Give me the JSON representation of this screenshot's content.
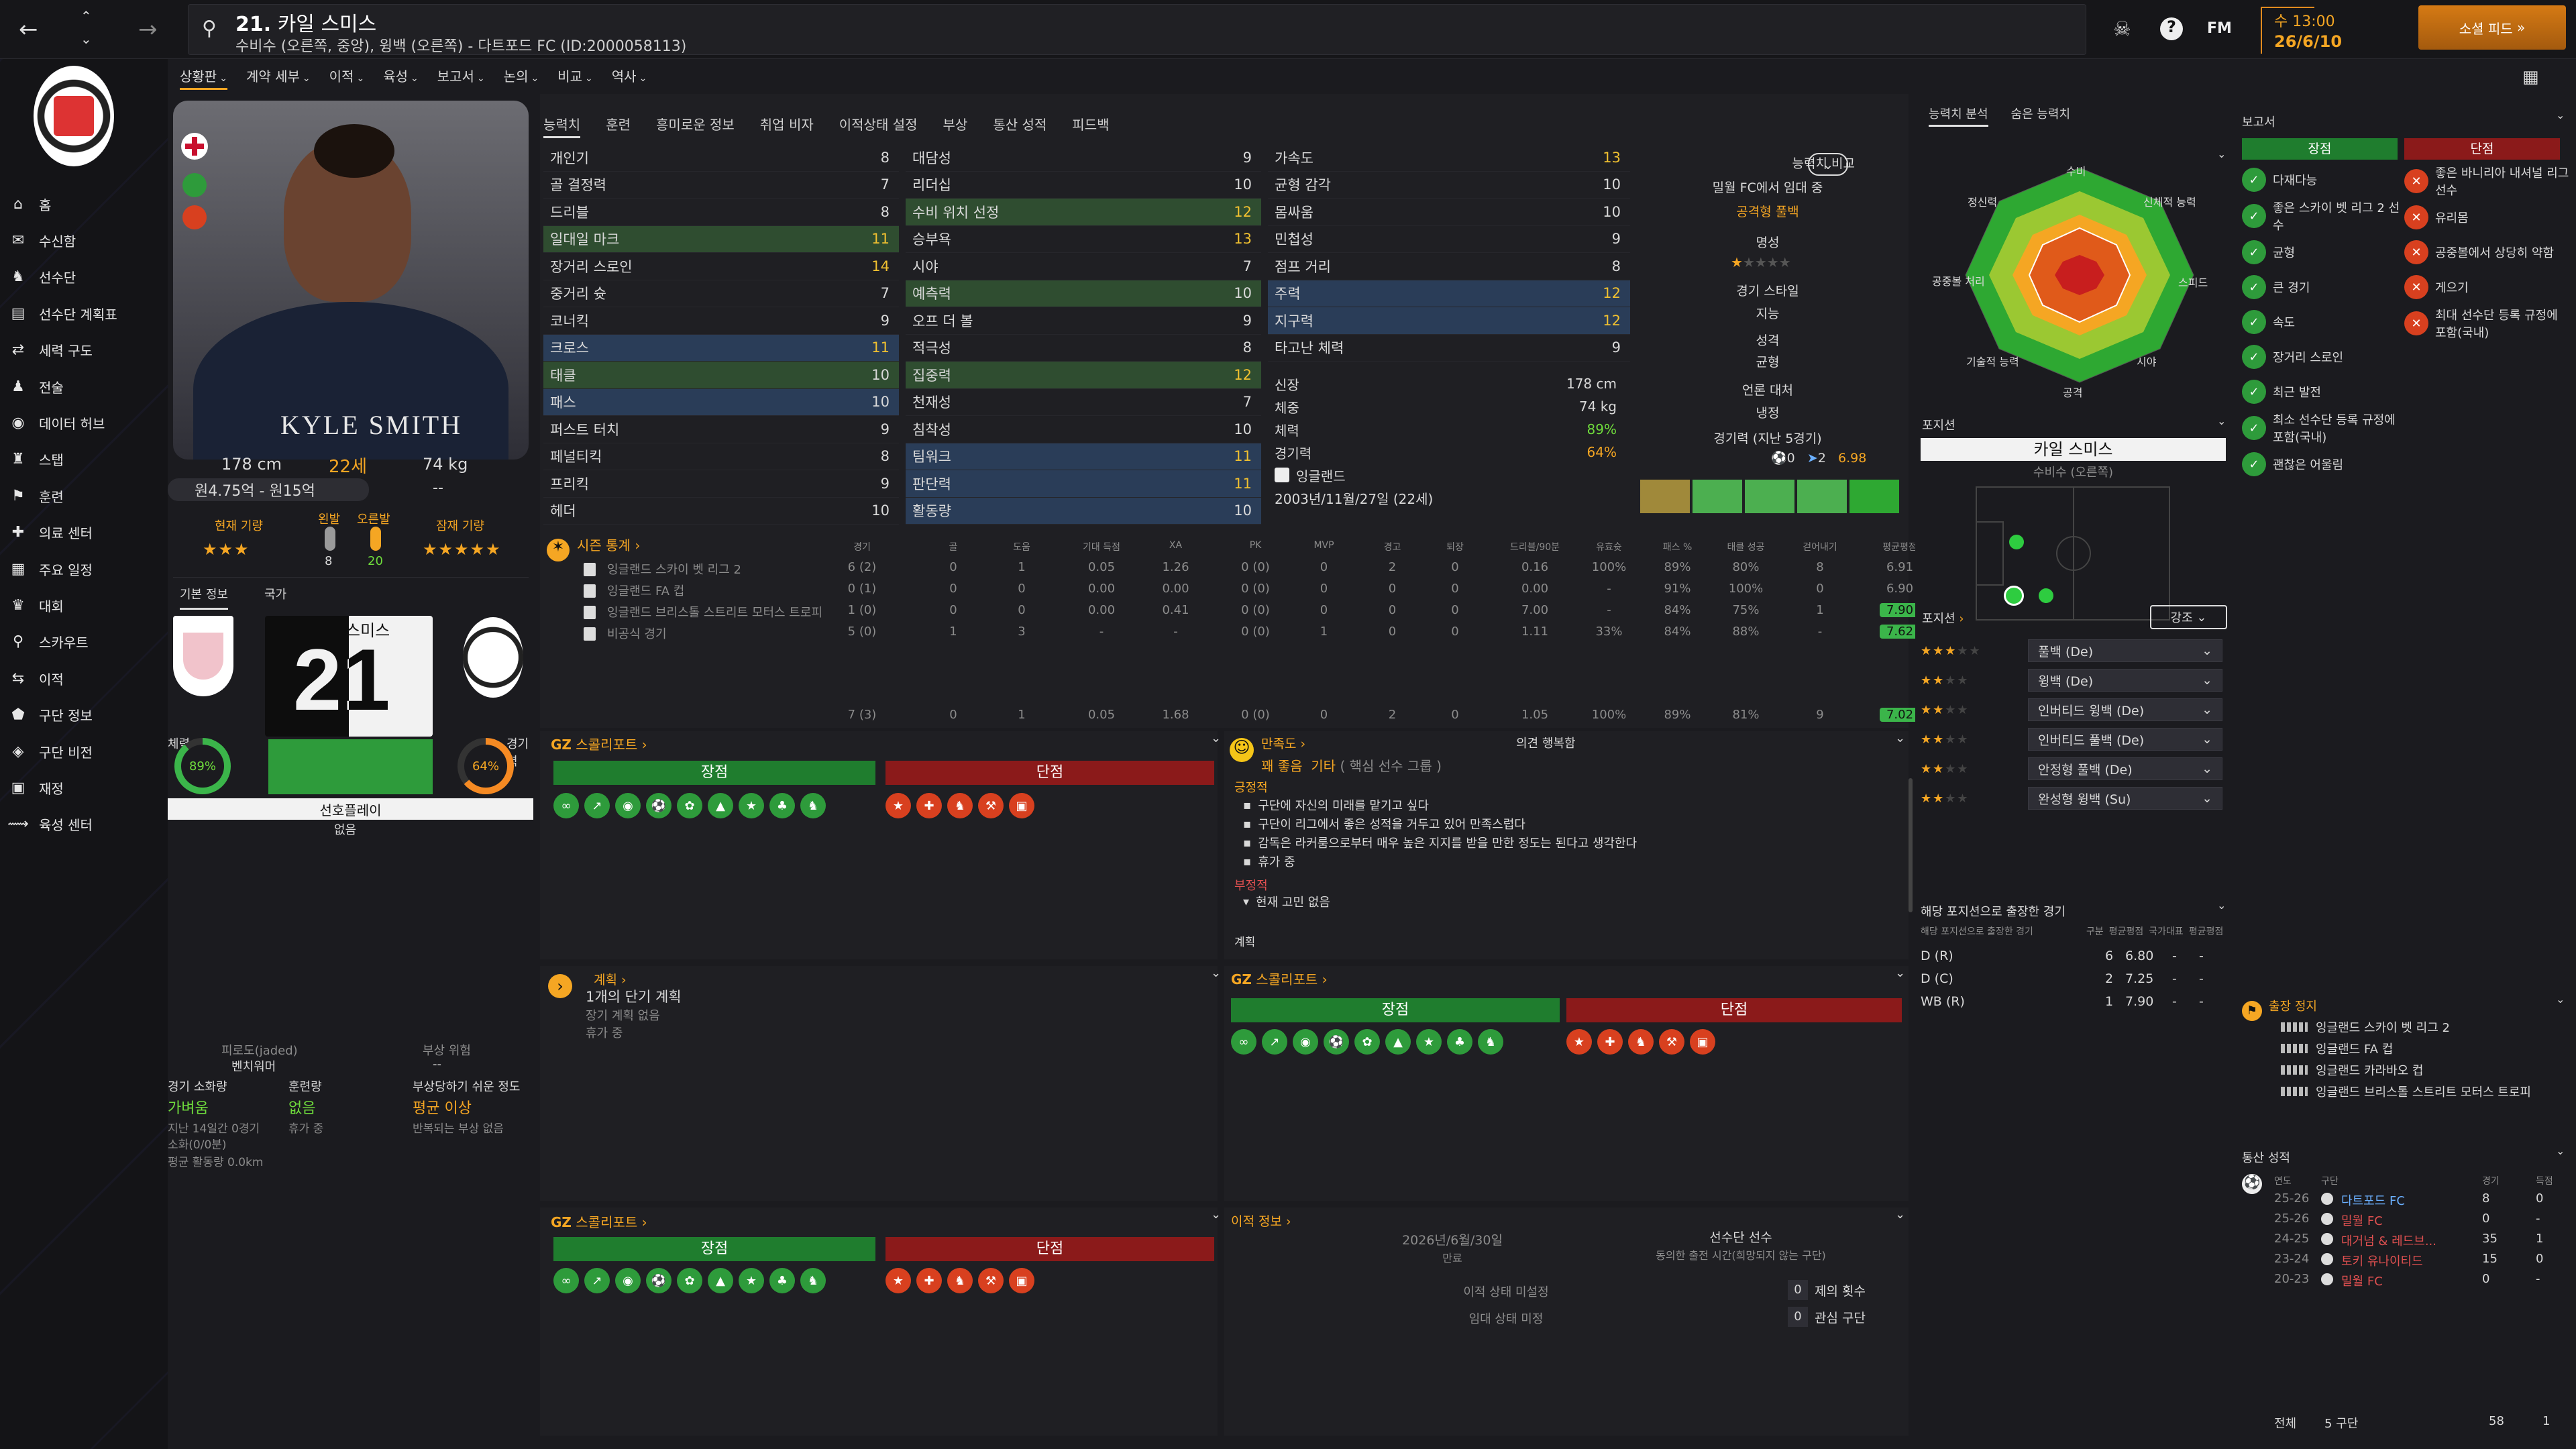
{
  "topbar": {
    "title_number": "21.",
    "title_name": "카일 스미스",
    "subtitle": "수비수 (오른쪽, 중앙), 윙백 (오른쪽) - 다트포드 FC (ID:2000058113)",
    "fm_label": "FM",
    "date_day": "수 13:00",
    "date": "26/6/10",
    "continue_label": "소셜 피드"
  },
  "nav_menu": [
    "상황판",
    "계약 세부",
    "이적",
    "육성",
    "보고서",
    "논의",
    "비교",
    "역사"
  ],
  "sidebar": {
    "items": [
      "홈",
      "수신함",
      "선수단",
      "선수단 계획표",
      "세력 구도",
      "전술",
      "데이터 허브",
      "스탭",
      "훈련",
      "의료 센터",
      "주요 일정",
      "대회",
      "스카우트",
      "이적",
      "구단 정보",
      "구단 비전",
      "재정",
      "육성 센터"
    ]
  },
  "player_card": {
    "name_on_photo": "KYLE SMITH",
    "height": "178 cm",
    "age": "22세",
    "weight": "74 kg",
    "wage": "원4.75억 - 원15억",
    "wage_dash": "--",
    "current_ability_label": "현재 기량",
    "current_ability_stars": "★★★",
    "left_foot_label": "왼발",
    "right_foot_label": "오른발",
    "left_foot_value": "8",
    "right_foot_value": "20",
    "potential_label": "잠재 기량",
    "potential_stars": "★★★★★",
    "tab_basic": "기본 정보",
    "tab_nation": "국가",
    "shirt_name": "스미스",
    "shirt_number": "21",
    "fitness_label": "체력",
    "fitness_value": "89%",
    "match_label": "경기력",
    "match_value": "64%",
    "playing_time": "선호플레이",
    "playing_time_sub": "없음",
    "fatigue_title": "피로도(jaded)",
    "fatigue_value": "벤치워머",
    "injury_title": "부상 위험",
    "injury_dash": "--",
    "load_label": "경기 소화량",
    "load_value": "가벼움",
    "training_label": "훈련량",
    "training_value": "없음",
    "injury_prone_label": "부상당하기 쉬운 정도",
    "injury_prone_value": "평균 이상",
    "load_sub1": "지난 14일간 0경기",
    "load_sub2": "소화(0/0분)",
    "load_sub3": "평균 활동량 0.0km",
    "training_sub": "휴가 중",
    "injury_sub": "반복되는 부상 없음"
  },
  "attr_tabs": [
    "능력치",
    "훈련",
    "흥미로운 정보",
    "취업 비자",
    "이적상태 설정",
    "부상",
    "통산 성적",
    "피드백"
  ],
  "technical": [
    {
      "name": "개인기",
      "value": "8",
      "hl": ""
    },
    {
      "name": "골 결정력",
      "value": "7",
      "hl": ""
    },
    {
      "name": "드리블",
      "value": "8",
      "hl": ""
    },
    {
      "name": "일대일 마크",
      "value": "11",
      "hl": "g"
    },
    {
      "name": "장거리 스로인",
      "value": "14",
      "hl": ""
    },
    {
      "name": "중거리 슛",
      "value": "7",
      "hl": ""
    },
    {
      "name": "코너킥",
      "value": "9",
      "hl": ""
    },
    {
      "name": "크로스",
      "value": "11",
      "hl": "b"
    },
    {
      "name": "태클",
      "value": "10",
      "hl": "g"
    },
    {
      "name": "패스",
      "value": "10",
      "hl": "b"
    },
    {
      "name": "퍼스트 터치",
      "value": "9",
      "hl": ""
    },
    {
      "name": "페널티킥",
      "value": "8",
      "hl": ""
    },
    {
      "name": "프리킥",
      "value": "9",
      "hl": ""
    },
    {
      "name": "헤더",
      "value": "10",
      "hl": ""
    }
  ],
  "mental": [
    {
      "name": "대담성",
      "value": "9",
      "hl": ""
    },
    {
      "name": "리더십",
      "value": "10",
      "hl": ""
    },
    {
      "name": "수비 위치 선정",
      "value": "12",
      "hl": "g"
    },
    {
      "name": "승부욕",
      "value": "13",
      "hl": ""
    },
    {
      "name": "시야",
      "value": "7",
      "hl": ""
    },
    {
      "name": "예측력",
      "value": "10",
      "hl": "g"
    },
    {
      "name": "오프 더 볼",
      "value": "9",
      "hl": ""
    },
    {
      "name": "적극성",
      "value": "8",
      "hl": ""
    },
    {
      "name": "집중력",
      "value": "12",
      "hl": "g"
    },
    {
      "name": "천재성",
      "value": "7",
      "hl": ""
    },
    {
      "name": "침착성",
      "value": "10",
      "hl": ""
    },
    {
      "name": "팀워크",
      "value": "11",
      "hl": "b"
    },
    {
      "name": "판단력",
      "value": "11",
      "hl": "b"
    },
    {
      "name": "활동량",
      "value": "10",
      "hl": "b"
    }
  ],
  "physical": [
    {
      "name": "가속도",
      "value": "13",
      "hl": ""
    },
    {
      "name": "균형 감각",
      "value": "10",
      "hl": ""
    },
    {
      "name": "몸싸움",
      "value": "10",
      "hl": ""
    },
    {
      "name": "민첩성",
      "value": "9",
      "hl": ""
    },
    {
      "name": "점프 거리",
      "value": "8",
      "hl": ""
    },
    {
      "name": "주력",
      "value": "12",
      "hl": "b"
    },
    {
      "name": "지구력",
      "value": "12",
      "hl": "b"
    },
    {
      "name": "타고난 체력",
      "value": "9",
      "hl": ""
    }
  ],
  "physical_extra": {
    "height_label": "신장",
    "height": "178 cm",
    "weight_label": "체중",
    "weight": "74 kg",
    "fitness_label": "체력",
    "fitness": "89%",
    "match_label": "경기력",
    "match": "64%",
    "nation": "잉글랜드",
    "dob": "2003년/11월/27일 (22세)"
  },
  "compare_box": {
    "label": "능력치 비교",
    "status": "밀월 FC에서 임대 중",
    "role": "공격형 풀백",
    "rep_label": "명성",
    "style_label": "경기 스타일",
    "intel_label": "지능",
    "personality_label": "성격",
    "balance_label": "균형",
    "media_label": "언론 대처",
    "cold_label": "냉정",
    "recent_label": "경기력 (지난 5경기)",
    "recent_goals": "0",
    "recent_assists": "2",
    "recent_rating": "6.98",
    "form_bars": [
      {
        "color": "#a0893a"
      },
      {
        "color": "#4caf50"
      },
      {
        "color": "#4caf50"
      },
      {
        "color": "#4caf50"
      },
      {
        "color": "#2ea832"
      }
    ]
  },
  "season_stats": {
    "title": "시즌 통계",
    "headers": [
      "경기",
      "골",
      "도움",
      "기대 득점",
      "XA",
      "PK",
      "MVP",
      "경고",
      "퇴장",
      "드리블/90분",
      "유효슛",
      "패스 %",
      "태클 성공",
      "걷어내기",
      "평균평점"
    ],
    "rows": [
      {
        "comp": "잉글랜드 스카이 벳 리그 2",
        "vals": [
          "6 (2)",
          "0",
          "1",
          "0.05",
          "1.26",
          "0 (0)",
          "0",
          "2",
          "0",
          "0.16",
          "100%",
          "89%",
          "80%",
          "8",
          "6.91"
        ],
        "rating_hl": ""
      },
      {
        "comp": "잉글랜드 FA 컵",
        "vals": [
          "0 (1)",
          "0",
          "0",
          "0.00",
          "0.00",
          "0 (0)",
          "0",
          "0",
          "0",
          "0.00",
          "-",
          "91%",
          "100%",
          "0",
          "6.90"
        ],
        "rating_hl": ""
      },
      {
        "comp": "잉글랜드 브리스톨 스트리트 모터스 트로피",
        "vals": [
          "1 (0)",
          "0",
          "0",
          "0.00",
          "0.41",
          "0 (0)",
          "0",
          "0",
          "0",
          "7.00",
          "-",
          "84%",
          "75%",
          "1",
          "7.90"
        ],
        "rating_hl": "g"
      },
      {
        "comp": "비공식 경기",
        "vals": [
          "5 (0)",
          "1",
          "3",
          "-",
          "-",
          "0 (0)",
          "1",
          "0",
          "0",
          "1.11",
          "33%",
          "84%",
          "88%",
          "-",
          "7.62"
        ],
        "rating_hl": "g"
      }
    ],
    "total": [
      "7 (3)",
      "0",
      "1",
      "0.05",
      "1.68",
      "0 (0)",
      "0",
      "2",
      "0",
      "1.05",
      "100%",
      "89%",
      "81%",
      "9",
      "7.02"
    ]
  },
  "scout_report": {
    "title": "스콜리포트",
    "strengths": "장점",
    "weaknesses": "단점"
  },
  "happiness": {
    "title": "만족도",
    "value": "꽤 좋음",
    "detail_a": "기타",
    "detail_b": "( 핵심 선수 그룹 )",
    "mood_header": "의견 행복함",
    "pos_title": "긍정적",
    "positives": [
      "구단에 자신의 미래를 맡기고 싶다",
      "구단이 리그에서 좋은 성적을 거두고 있어 만족스럽다",
      "감독은 라커룸으로부터 매우 높은 지지를 받을 만한 정도는 된다고 생각한다",
      "휴가 중"
    ],
    "neg_title": "부정적",
    "negatives": [
      "현재 고민 없음"
    ],
    "plan_title": "계획"
  },
  "plans": {
    "title": "계획",
    "main": "1개의 단기 계획",
    "sub1": "장기 계획 없음",
    "sub2": "휴가 중"
  },
  "transfer": {
    "title": "이적 정보",
    "contract_end": "2026년/6월/30일",
    "contract_label": "만료",
    "squad_label": "선수단 선수",
    "squad_sub": "동의한 출전 시간(희망되지 않는 구단)",
    "transfer_status": "이적 상태 미설정",
    "loan_status": "임대 상태 미정",
    "offers_value": "0",
    "offers_label": "제의 횟수",
    "interest_value": "0",
    "interest_label": "관심 구단"
  },
  "right_panel": {
    "tabs": [
      "능력치 분석",
      "숨은 능력치"
    ],
    "radar_labels": [
      "수비",
      "신체적 능력",
      "스피드",
      "시야",
      "공격",
      "기술적 능력",
      "공중볼 처리",
      "정신력"
    ],
    "position_title": "포지션",
    "player_name": "카일 스미스",
    "player_pos": "수비수 (오른쪽)",
    "roles_title": "포지션",
    "roles_filter": "강조",
    "roles": [
      {
        "stars": "★★★",
        "name": "풀백 (De)"
      },
      {
        "stars": "★★",
        "name": "윙백 (De)"
      },
      {
        "stars": "★★",
        "name": "인버티드 윙백 (De)"
      },
      {
        "stars": "★★",
        "name": "인버티드 풀백 (De)"
      },
      {
        "stars": "★★",
        "name": "안정형 풀백 (De)"
      },
      {
        "stars": "★★",
        "name": "완성형 윙백 (Su)"
      }
    ],
    "pos_stats_title": "해당 포지션으로 출장한 경기",
    "pos_stats_sub": "해당 포지션으로 출장한 경기",
    "pos_stats_cols": [
      "구분",
      "평균평점",
      "국가대표",
      "평균평점"
    ],
    "pos_stats": [
      {
        "pos": "D (R)",
        "apps": "6",
        "rating": "6.80"
      },
      {
        "pos": "D (C)",
        "apps": "2",
        "rating": "7.25"
      },
      {
        "pos": "WB (R)",
        "apps": "1",
        "rating": "7.90"
      }
    ]
  },
  "far_right": {
    "reports_title": "보고서",
    "strengths": "장점",
    "weaknesses": "단점",
    "pros": [
      "다재다능",
      "좋은 스카이 벳 리그 2 선수",
      "균형",
      "큰 경기",
      "속도",
      "장거리 스로인",
      "최근 발전",
      "최소 선수단 등록 규정에 포함(국내)",
      "괜찮은 어울림"
    ],
    "cons": [
      "좋은 바니리아 내셔널 리그 선수",
      "유리몸",
      "공중볼에서 상당히 약함",
      "게으기",
      "최대 선수단 등록 규정에 포함(국내)"
    ],
    "suspension_title": "출장 정지",
    "suspensions": [
      "잉글랜드 스카이 벳 리그 2",
      "잉글랜드 FA 컵",
      "잉글랜드 카라바오 컵",
      "잉글랜드 브리스톨 스트리트 모터스 트로피"
    ],
    "career_title": "통산 성적",
    "career_cols": [
      "연도",
      "구단",
      "경기",
      "득점"
    ],
    "career": [
      {
        "year": "25-26",
        "club": "다트포드 FC",
        "apps": "8",
        "goals": "0",
        "hl": true
      },
      {
        "year": "25-26",
        "club": "밀월 FC",
        "apps": "0",
        "goals": "-",
        "hl": false
      },
      {
        "year": "24-25",
        "club": "대거넘 & 레드브...",
        "apps": "35",
        "goals": "1",
        "hl": false
      },
      {
        "year": "23-24",
        "club": "토키 유나이티드",
        "apps": "15",
        "goals": "0",
        "hl": false
      },
      {
        "year": "20-23",
        "club": "밀월 FC",
        "apps": "0",
        "goals": "-",
        "hl": false
      }
    ],
    "total_label": "전체",
    "total_clubs": "5 구단",
    "total_apps": "58",
    "total_goals": "1"
  }
}
